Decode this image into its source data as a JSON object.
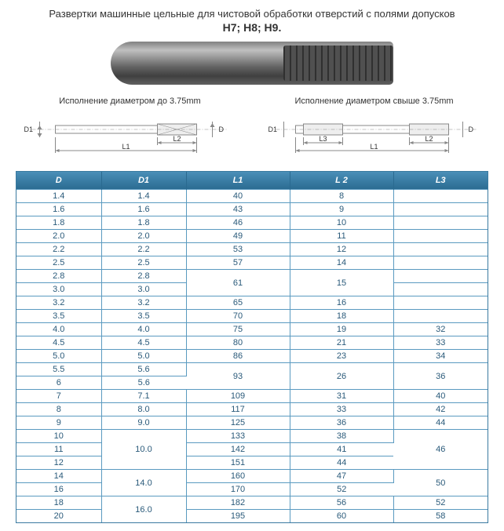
{
  "title": "Развертки машинные цельные для чистовой обработки отверстий с полями допусков",
  "subtitle": "H7; H8; H9.",
  "diagram_left_label": "Исполнение диаметром до 3.75mm",
  "diagram_right_label": "Исполнение диаметром свыше 3.75mm",
  "dims": {
    "D": "D",
    "D1": "D1",
    "L1": "L1",
    "L2": "L2",
    "L3": "L3"
  },
  "table": {
    "columns": [
      "D",
      "D1",
      "L1",
      "L 2",
      "L3"
    ],
    "header_bg_gradient": [
      "#4a8fb8",
      "#2a6a90"
    ],
    "header_color": "#ffffff",
    "border_color": "#5a9ac0",
    "text_color": "#2a5a7a",
    "font_size": 11,
    "rows": [
      {
        "D": "1.4",
        "D1": "1.4",
        "L1": "40",
        "L2": "8",
        "L3": ""
      },
      {
        "D": "1.6",
        "D1": "1.6",
        "L1": "43",
        "L2": "9",
        "L3": ""
      },
      {
        "D": "1.8",
        "D1": "1.8",
        "L1": "46",
        "L2": "10",
        "L3": ""
      },
      {
        "D": "2.0",
        "D1": "2.0",
        "L1": "49",
        "L2": "11",
        "L3": ""
      },
      {
        "D": "2.2",
        "D1": "2.2",
        "L1": "53",
        "L2": "12",
        "L3": ""
      },
      {
        "D": "2.5",
        "D1": "2.5",
        "L1": "57",
        "L2": "14",
        "L3": ""
      },
      {
        "D": "2.8",
        "D1": "2.8",
        "L1": "61",
        "L1_rowspan": 2,
        "L2": "15",
        "L2_rowspan": 2,
        "L3": ""
      },
      {
        "D": "3.0",
        "D1": "3.0",
        "L3": ""
      },
      {
        "D": "3.2",
        "D1": "3.2",
        "L1": "65",
        "L2": "16",
        "L3": ""
      },
      {
        "D": "3.5",
        "D1": "3.5",
        "L1": "70",
        "L2": "18",
        "L3": ""
      },
      {
        "D": "4.0",
        "D1": "4.0",
        "L1": "75",
        "L2": "19",
        "L3": "32"
      },
      {
        "D": "4.5",
        "D1": "4.5",
        "L1": "80",
        "L2": "21",
        "L3": "33"
      },
      {
        "D": "5.0",
        "D1": "5.0",
        "L1": "86",
        "L2": "23",
        "L3": "34"
      },
      {
        "D": "5.5",
        "D1": "5.6",
        "L1": "93",
        "L1_rowspan": 2,
        "L2": "26",
        "L2_rowspan": 2,
        "L3": "36",
        "L3_rowspan": 2
      },
      {
        "D": "6",
        "D1": "5.6"
      },
      {
        "D": "7",
        "D1": "7.1",
        "L1": "109",
        "L2": "31",
        "L3": "40"
      },
      {
        "D": "8",
        "D1": "8.0",
        "L1": "117",
        "L2": "33",
        "L3": "42"
      },
      {
        "D": "9",
        "D1": "9.0",
        "L1": "125",
        "L2": "36",
        "L3": "44"
      },
      {
        "D": "10",
        "D1": "10.0",
        "D1_rowspan": 3,
        "L1": "133",
        "L2": "38",
        "L3": "46",
        "L3_rowspan": 3
      },
      {
        "D": "11",
        "L1": "142",
        "L2": "41"
      },
      {
        "D": "12",
        "L1": "151",
        "L2": "44"
      },
      {
        "D": "14",
        "D1": "14.0",
        "D1_rowspan": 2,
        "L1": "160",
        "L2": "47",
        "L3": "50",
        "L3_rowspan": 2
      },
      {
        "D": "16",
        "L1": "170",
        "L2": "52"
      },
      {
        "D": "18",
        "D1": "16.0",
        "D1_rowspan": 2,
        "L1": "182",
        "L2": "56",
        "L3": "52"
      },
      {
        "D": "20",
        "L1": "195",
        "L2": "60",
        "L3": "58"
      }
    ]
  }
}
